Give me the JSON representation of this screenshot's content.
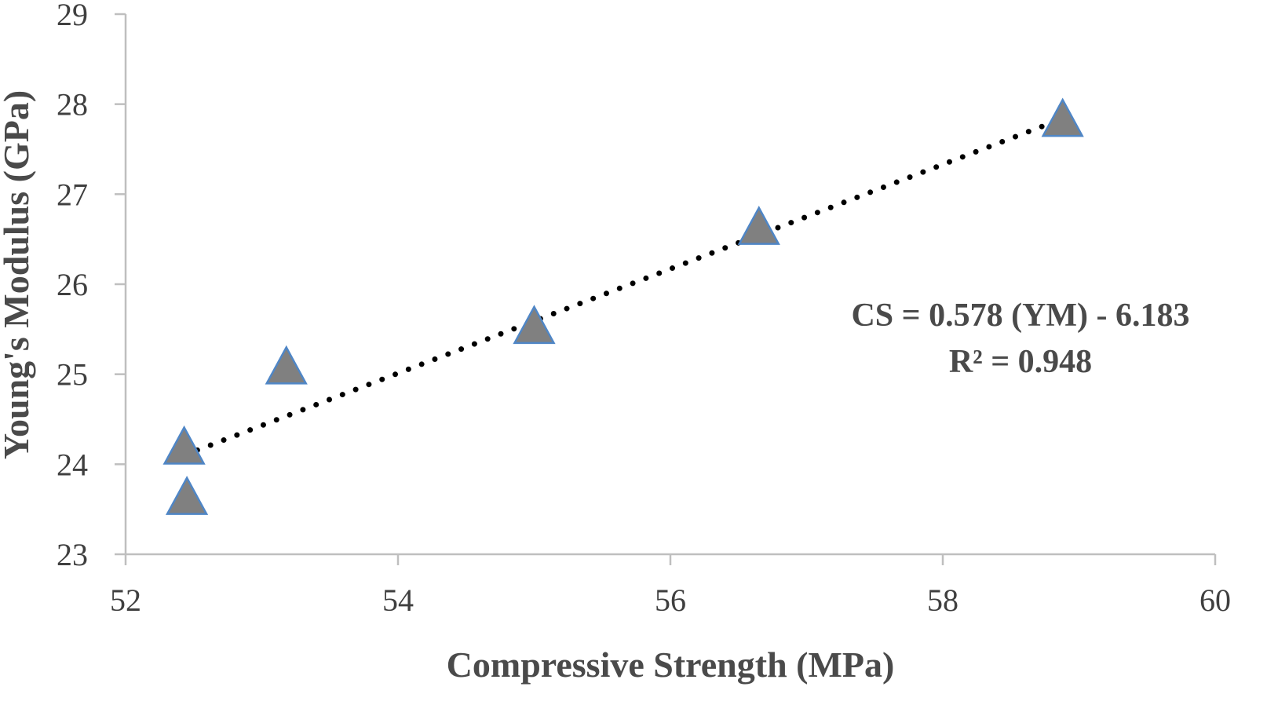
{
  "chart_data": {
    "type": "scatter",
    "xlabel": "Compressive Strength (MPa)",
    "ylabel": "Young's Modulus (GPa)",
    "xlim": [
      52,
      60
    ],
    "ylim": [
      23,
      29
    ],
    "x_ticks": [
      52,
      54,
      56,
      58,
      60
    ],
    "y_ticks": [
      23,
      24,
      25,
      26,
      27,
      28,
      29
    ],
    "grid": false,
    "legend": "none",
    "series": [
      {
        "marker": "triangle",
        "marker_fill": "#808080",
        "marker_edge": "#4f86c6",
        "points": [
          {
            "x": 52.43,
            "y": 24.16
          },
          {
            "x": 52.45,
            "y": 23.6
          },
          {
            "x": 53.18,
            "y": 25.05
          },
          {
            "x": 55.0,
            "y": 25.5
          },
          {
            "x": 56.65,
            "y": 26.6
          },
          {
            "x": 58.88,
            "y": 27.8
          }
        ]
      }
    ],
    "trendline": {
      "style": "dotted",
      "color": "#000000",
      "from": {
        "x": 52.43,
        "y": 24.1
      },
      "to": {
        "x": 58.88,
        "y": 27.84
      }
    },
    "annotations": {
      "equation": "CS = 0.578 (YM) - 6.183",
      "r_squared": "R² = 0.948"
    }
  }
}
